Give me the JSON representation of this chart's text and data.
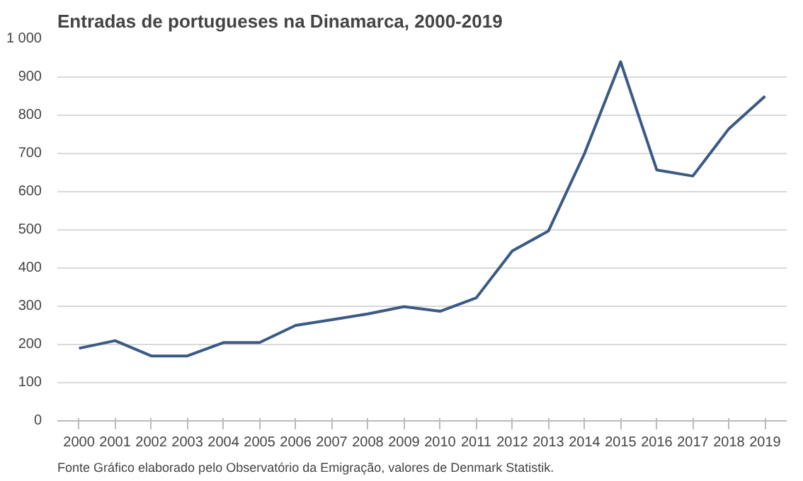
{
  "chart_data": {
    "type": "line",
    "title": "Entradas  de portugueses  na Dinamarca, 2000-2019",
    "categories": [
      "2000",
      "2001",
      "2002",
      "2003",
      "2004",
      "2005",
      "2006",
      "2007",
      "2008",
      "2009",
      "2010",
      "2011",
      "2012",
      "2013",
      "2014",
      "2015",
      "2016",
      "2017",
      "2018",
      "2019"
    ],
    "values": [
      190,
      210,
      170,
      170,
      205,
      205,
      250,
      265,
      280,
      299,
      287,
      322,
      445,
      497,
      700,
      940,
      657,
      641,
      765,
      850
    ],
    "color": "#3a5a86",
    "ylim": [
      0,
      1000
    ],
    "yticks": [
      0,
      100,
      200,
      300,
      400,
      500,
      600,
      700,
      800,
      900,
      {
        "value": 1000,
        "label": "1 000"
      }
    ],
    "grid": "y",
    "line_style": "solid",
    "annotations": [
      "Fonte  Gráfico elaborado pelo Observatório da Emigração, valores de Denmark Statistik."
    ]
  }
}
